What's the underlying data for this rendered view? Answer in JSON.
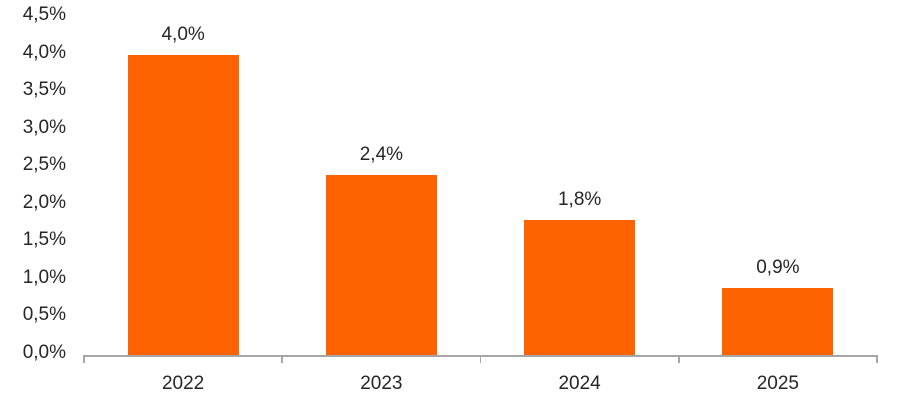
{
  "chart_data": {
    "type": "bar",
    "title": "",
    "categories": [
      "2022",
      "2023",
      "2024",
      "2025"
    ],
    "values": [
      4.0,
      2.4,
      1.8,
      0.9
    ],
    "data_labels": [
      "4,0%",
      "2,4%",
      "1,8%",
      "0,9%"
    ],
    "series_name": "",
    "xlabel": "",
    "ylabel": "",
    "ylim": [
      0.0,
      4.5
    ],
    "y_tick_step": 0.5,
    "y_tick_labels": [
      "0,0%",
      "0,5%",
      "1,0%",
      "1,5%",
      "2,0%",
      "2,5%",
      "3,0%",
      "3,5%",
      "4,0%",
      "4,5%"
    ],
    "grid": false,
    "legend_position": "none",
    "decimal_separator": ",",
    "colors": {
      "bar": "#ff6200",
      "axis": "#a6a6a6",
      "text": "#262626",
      "background": "#ffffff"
    }
  }
}
